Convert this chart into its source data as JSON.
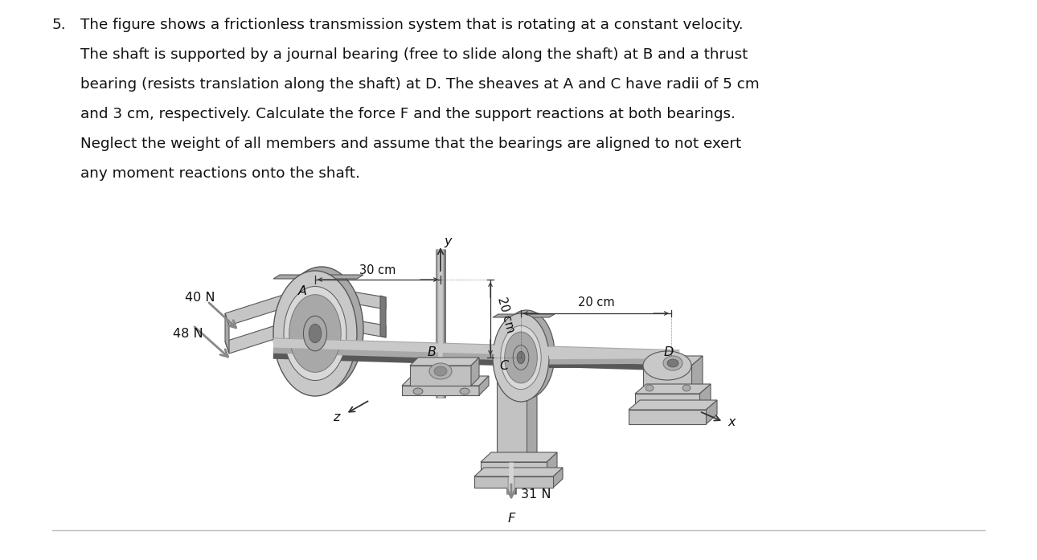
{
  "background_color": "#ffffff",
  "problem_number": "5.",
  "text_line1": "The figure shows a frictionless transmission system that is rotating at a constant velocity.",
  "text_line2": "The shaft is supported by a journal bearing (free to slide along the shaft) at B and a thrust",
  "text_line3": "bearing (resists translation along the shaft) at D. The sheaves at A and C have radii of 5 cm",
  "text_line4": "and 3 cm, respectively. Calculate the force F and the support reactions at both bearings.",
  "text_line5": "Neglect the weight of all members and assume that the bearings are aligned to not exert",
  "text_line6": "any moment reactions onto the shaft.",
  "font_size_text": 13.2,
  "font_size_label": 11.5,
  "font_size_dim": 10.5,
  "text_color": "#111111",
  "gray_light": "#c8c8c8",
  "gray_mid": "#a8a8a8",
  "gray_dark": "#787878",
  "gray_darker": "#585858",
  "arrow_color": "#888888",
  "axis_color": "#333333"
}
